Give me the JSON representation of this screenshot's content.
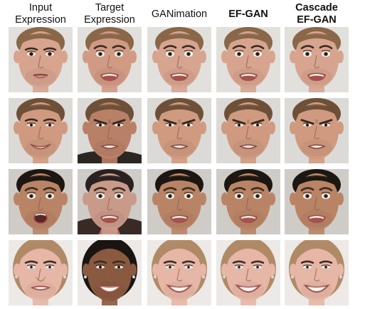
{
  "figure": {
    "columns": [
      {
        "label": "Input Expression",
        "lines": [
          "Input",
          "Expression"
        ],
        "bold": false
      },
      {
        "label": "Target Expression",
        "lines": [
          "Target",
          "Expression"
        ],
        "bold": false
      },
      {
        "label": "GANimation",
        "lines": [
          "GANimation"
        ],
        "bold": false
      },
      {
        "label": "EF-GAN",
        "lines": [
          "EF-GAN"
        ],
        "bold": true
      },
      {
        "label": "Cascade EF-GAN",
        "lines": [
          "Cascade",
          "EF-GAN"
        ],
        "bold": true
      }
    ],
    "rows": [
      {
        "subject": "man-short-hair",
        "target_subject": "same",
        "expressions": [
          "neutral-pout",
          "fear-grimace",
          "fear-grimace",
          "fear-grimace",
          "fear-grimace"
        ]
      },
      {
        "subject": "man-smiling",
        "target_subject": "same",
        "expressions": [
          "smile",
          "angry-scowl",
          "angry-scowl",
          "angry-scowl",
          "angry-scowl"
        ]
      },
      {
        "subject": "man-dark-hair",
        "target_subject": "different-man",
        "expressions": [
          "surprise-open-mouth",
          "fear-grimace",
          "fear-grimace",
          "fear-grimace",
          "fear-grimace"
        ]
      },
      {
        "subject": "woman-blonde",
        "target_subject": "different-woman",
        "expressions": [
          "disgust",
          "big-smile",
          "big-smile",
          "big-smile",
          "big-smile"
        ]
      }
    ],
    "colors": {
      "background": "#ffffff",
      "row1_skin": "#d7a48f",
      "row1_hair": "#8a6748",
      "row1_bg": "#e2e0dc",
      "row1_target_skin": "#d19a84",
      "row2_skin": "#cf9a80",
      "row2_hair": "#6e5038",
      "row2_bg": "#dcdad6",
      "row2_target_skin": "#b98068",
      "row3_skin": "#b98466",
      "row3_hair": "#1c1712",
      "row3_bg": "#cfccc7",
      "row3_target_skin": "#c99a8a",
      "row3_target_hair": "#2a2220",
      "row4_skin": "#e6b7a6",
      "row4_hair": "#b08a66",
      "row4_bg": "#ece9e6",
      "row4_target_skin": "#8a5a40",
      "row4_target_hair": "#1a1512"
    }
  }
}
